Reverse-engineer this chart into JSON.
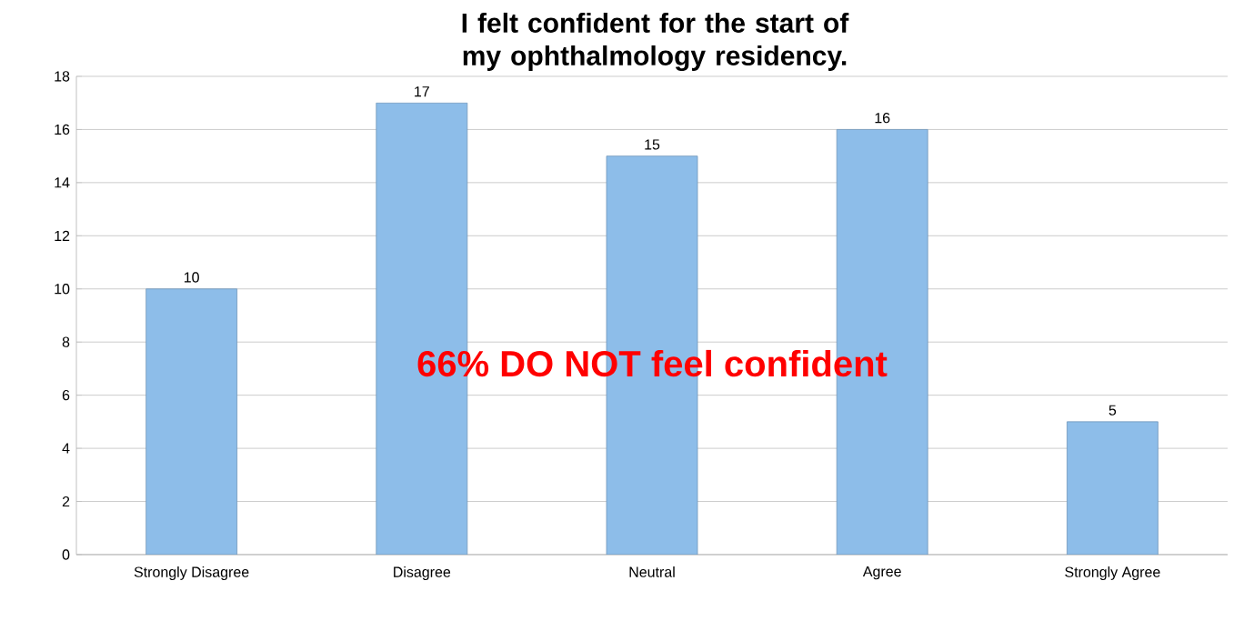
{
  "chart_data": {
    "type": "bar",
    "title": "I felt confident for the start of my ophthalmology residency.",
    "categories": [
      "Strongly Disagree",
      "Disagree",
      "Neutral",
      "Agree",
      "Strongly Agree"
    ],
    "values": [
      10,
      17,
      15,
      16,
      5
    ],
    "color": "#8dbde9",
    "ylim": [
      0,
      18
    ],
    "yticks": [
      0,
      2,
      4,
      6,
      8,
      10,
      12,
      14,
      16,
      18
    ],
    "grid": "y",
    "data_labels": true,
    "annotations": [
      "66% DO NOT feel confident"
    ]
  }
}
